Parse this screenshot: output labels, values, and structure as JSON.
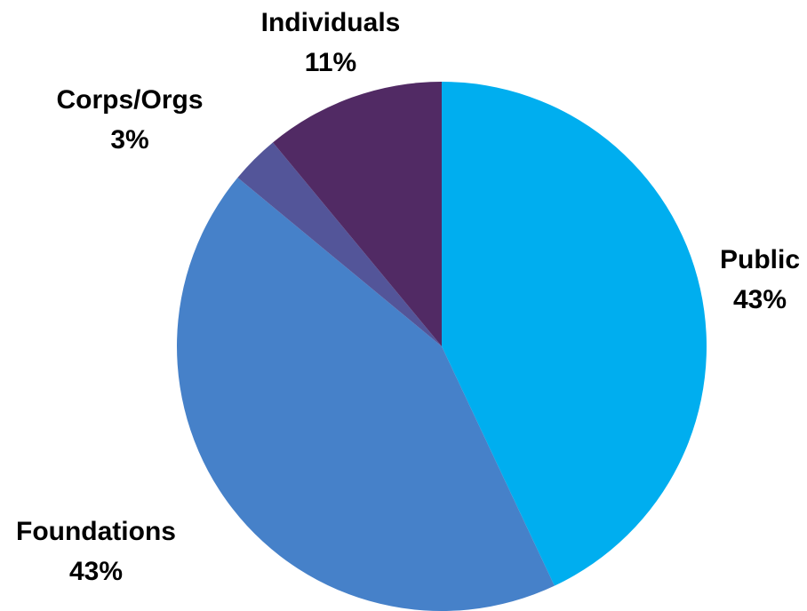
{
  "chart_data": {
    "type": "pie",
    "title": "",
    "slices": [
      {
        "label": "Public",
        "value": 43,
        "display": "43%",
        "color": "#00AEEF"
      },
      {
        "label": "Foundations",
        "value": 43,
        "display": "43%",
        "color": "#4681C9"
      },
      {
        "label": "Corps/Orgs",
        "value": 3,
        "display": "3%",
        "color": "#535599"
      },
      {
        "label": "Individuals",
        "value": 11,
        "display": "11%",
        "color": "#512A64"
      }
    ],
    "start_angle": "12 o'clock",
    "direction": "clockwise",
    "legend": "none",
    "labels": "outside"
  }
}
